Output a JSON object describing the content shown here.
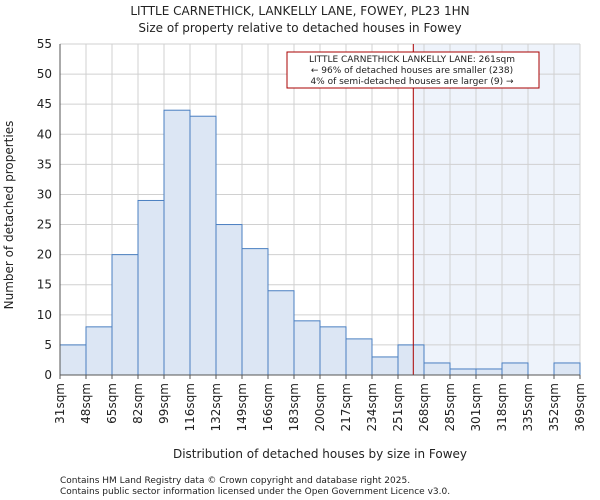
{
  "chart_data": {
    "type": "bar",
    "title_line1": "LITTLE CARNETHICK, LANKELLY LANE, FOWEY, PL23 1HN",
    "title_line2": "Size of property relative to detached houses in Fowey",
    "xlabel": "Distribution of detached houses by size in Fowey",
    "ylabel": "Number of detached properties",
    "ylim": [
      0,
      55
    ],
    "yticks": [
      0,
      5,
      10,
      15,
      20,
      25,
      30,
      35,
      40,
      45,
      50,
      55
    ],
    "bin_edges": [
      31,
      48,
      65,
      82,
      99,
      116,
      132,
      149,
      166,
      183,
      200,
      217,
      234,
      251,
      268,
      285,
      301,
      318,
      335,
      352,
      369
    ],
    "tick_labels": [
      "31sqm",
      "48sqm",
      "65sqm",
      "82sqm",
      "99sqm",
      "116sqm",
      "132sqm",
      "149sqm",
      "166sqm",
      "183sqm",
      "200sqm",
      "217sqm",
      "234sqm",
      "251sqm",
      "268sqm",
      "285sqm",
      "301sqm",
      "318sqm",
      "335sqm",
      "352sqm",
      "369sqm"
    ],
    "values": [
      5,
      8,
      20,
      29,
      44,
      43,
      25,
      21,
      14,
      9,
      8,
      6,
      3,
      5,
      2,
      1,
      1,
      2,
      0,
      2
    ],
    "marker_value": 261,
    "annotation": [
      "LITTLE CARNETHICK LANKELLY LANE: 261sqm",
      "← 96% of detached houses are smaller (238)",
      "4% of semi-detached houses are larger (9) →"
    ],
    "colors": {
      "bar_fill": "#dce6f4",
      "bar_stroke": "#4a7fc1",
      "highlight_fill": "#eef3fb",
      "marker": "#aa0000",
      "grid": "#d0d0d0"
    }
  },
  "footer": {
    "line1": "Contains HM Land Registry data © Crown copyright and database right 2025.",
    "line2": "Contains public sector information licensed under the Open Government Licence v3.0."
  }
}
